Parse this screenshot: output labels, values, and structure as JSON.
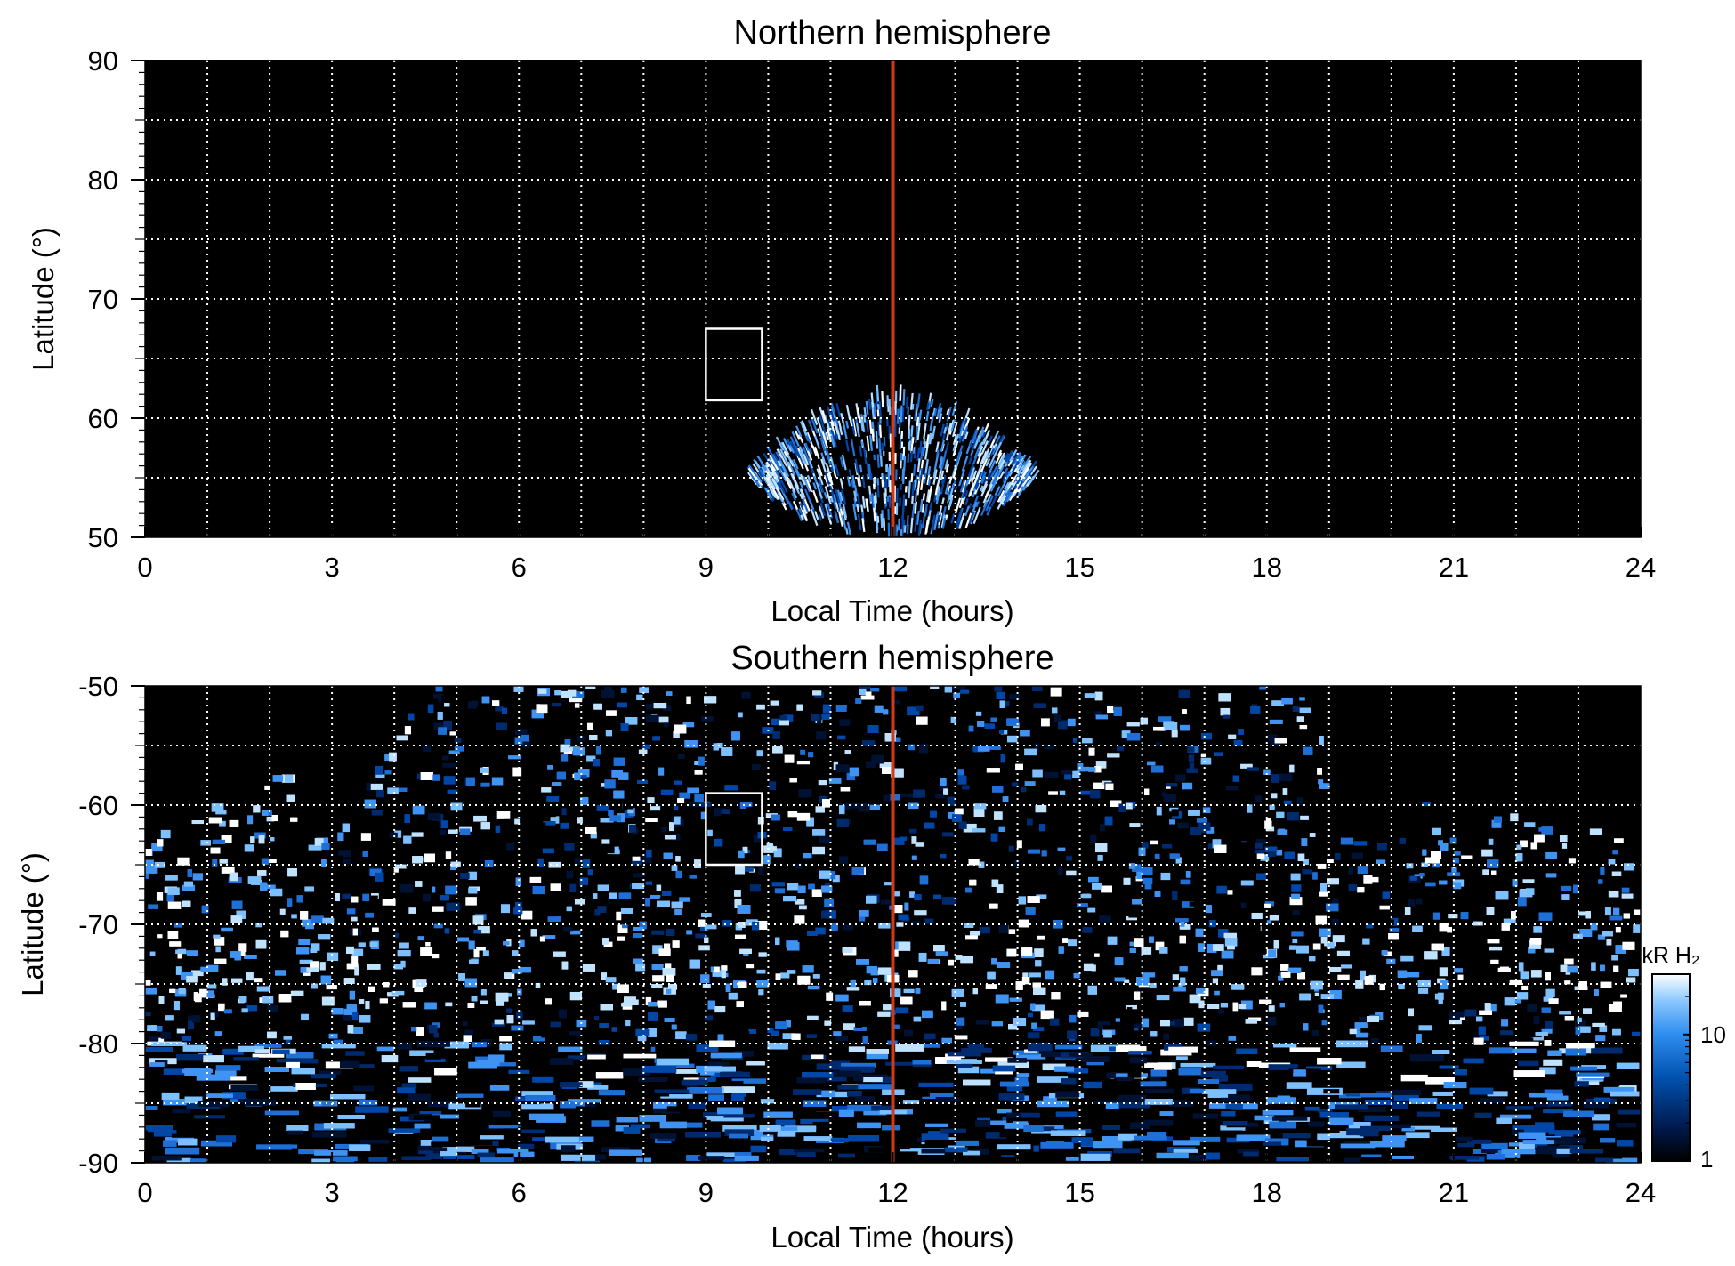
{
  "chart_data": [
    {
      "type": "heatmap",
      "title": "Northern hemisphere",
      "xlabel": "Local Time (hours)",
      "ylabel": "Latitude (°)",
      "xlim": [
        0,
        24
      ],
      "ylim": [
        50,
        90
      ],
      "xticks": [
        "0",
        "3",
        "6",
        "9",
        "12",
        "15",
        "18",
        "21",
        "24"
      ],
      "yticks": [
        "50",
        "60",
        "70",
        "80",
        "90"
      ],
      "grid": true,
      "background_color": "#000000",
      "marker_line": {
        "x": 12,
        "color": "#d03a14"
      },
      "box": {
        "x": [
          9.0,
          9.9
        ],
        "y": [
          61.5,
          67.5
        ],
        "color": "#ffffff"
      },
      "emission_regions": [
        {
          "lt_center": 12.0,
          "lt_halfwidth": 2.2,
          "lat_min": 50,
          "lat_max": 61.5,
          "intensity": "mid-high"
        }
      ]
    },
    {
      "type": "heatmap",
      "title": "Southern hemisphere",
      "xlabel": "Local Time (hours)",
      "ylabel": "Latitude (°)",
      "xlim": [
        0,
        24
      ],
      "ylim": [
        -90,
        -50
      ],
      "xticks": [
        "0",
        "3",
        "6",
        "9",
        "12",
        "15",
        "18",
        "21",
        "24"
      ],
      "yticks": [
        "-50",
        "-60",
        "-70",
        "-80",
        "-90"
      ],
      "grid": true,
      "background_color": "#000000",
      "marker_line": {
        "x": 12,
        "color": "#d03a14"
      },
      "box": {
        "x": [
          9.0,
          9.9
        ],
        "y": [
          -65.0,
          -59.0
        ],
        "color": "#ffffff"
      },
      "emission_regions": [
        {
          "lt_range": [
            0,
            24
          ],
          "lat_range": [
            -90,
            -63
          ],
          "intensity": "mixed"
        },
        {
          "lt_range": [
            4.5,
            19.0
          ],
          "lat_range": [
            -63,
            -50
          ],
          "intensity": "mixed"
        },
        {
          "lt_range": [
            0,
            3
          ],
          "lat_range": [
            -75,
            -57
          ],
          "intensity": "high"
        },
        {
          "lt_range": [
            20.5,
            24
          ],
          "lat_range": [
            -75,
            -59
          ],
          "intensity": "high"
        },
        {
          "lt_range": [
            0,
            24
          ],
          "lat_range": [
            -76,
            -72
          ],
          "intensity": "auroral-oval-bright"
        }
      ]
    }
  ],
  "colorbar": {
    "label": "kR H₂",
    "ticks": [
      "10",
      "1"
    ],
    "scale": "log",
    "range": [
      1,
      30
    ],
    "colors": [
      "#000000",
      "#001a4d",
      "#0052b0",
      "#2f8ef0",
      "#8cc8ff",
      "#ffffff"
    ]
  }
}
